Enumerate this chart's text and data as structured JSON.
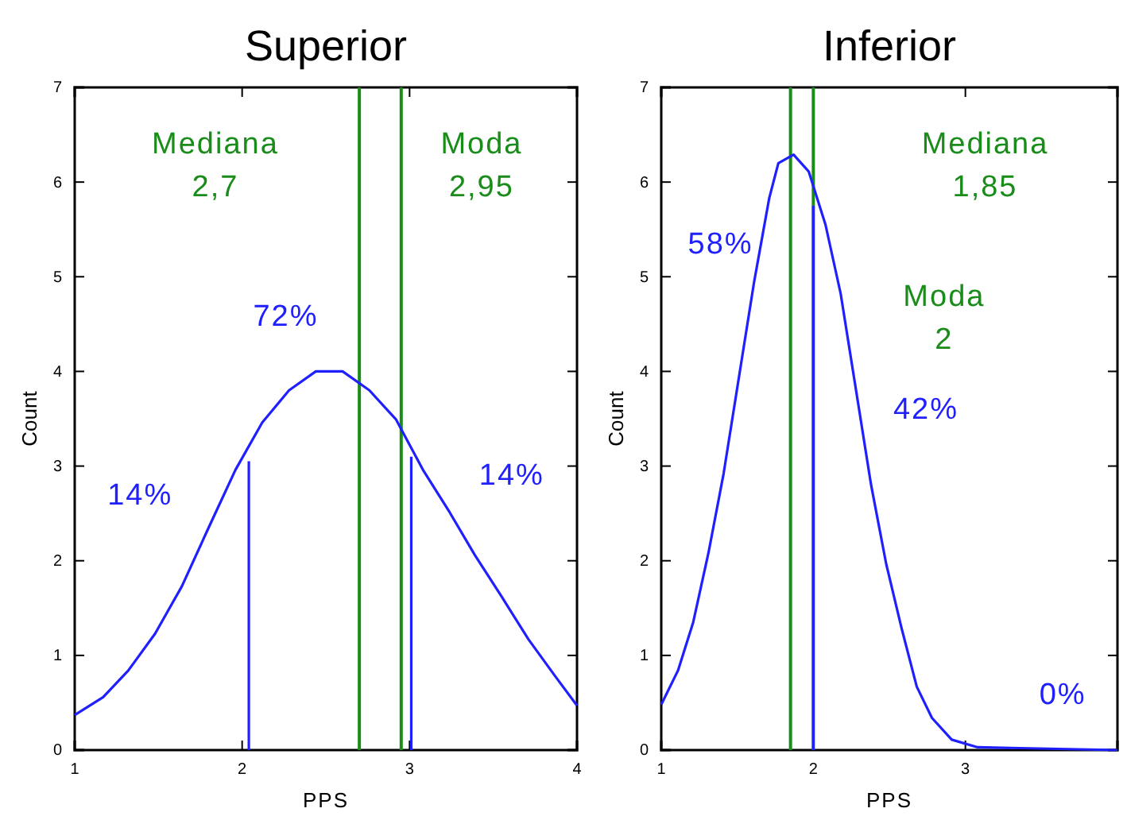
{
  "chart_data": [
    {
      "type": "line",
      "title": "Superior",
      "xlabel": "PPS",
      "ylabel": "Count",
      "xlim": [
        1,
        4
      ],
      "ylim": [
        0,
        7
      ],
      "xticks": [
        1,
        2,
        3,
        4
      ],
      "yticks": [
        0,
        1,
        2,
        3,
        4,
        5,
        6,
        7
      ],
      "marker": "none",
      "line_style": "solid",
      "series": [
        {
          "color": "#2020ff",
          "x": [
            1,
            1.17,
            1.32,
            1.48,
            1.64,
            1.8,
            1.96,
            2.12,
            2.28,
            2.44,
            2.6,
            2.76,
            2.92,
            3.08,
            3.24,
            3.39,
            3.55,
            3.71,
            3.87,
            4
          ],
          "values": [
            0.37,
            0.56,
            0.84,
            1.23,
            1.73,
            2.35,
            2.96,
            3.46,
            3.8,
            4,
            4,
            3.8,
            3.49,
            2.96,
            2.51,
            2.06,
            1.62,
            1.17,
            0.78,
            0.47
          ]
        },
        {
          "color": "#2020ff",
          "x": [
            2.04,
            2.04
          ],
          "values": [
            0,
            3.05
          ]
        },
        {
          "color": "#2020ff",
          "x": [
            3.01,
            3.01
          ],
          "values": [
            0,
            3.1
          ]
        }
      ],
      "ref_lines": [
        {
          "axis": "x",
          "value": 2.7,
          "label": "Mediana\n2,7",
          "color": "#1a8c1a"
        },
        {
          "axis": "x",
          "value": 2.95,
          "label": "Moda\n2,95",
          "color": "#1a8c1a"
        }
      ],
      "annotations": [
        "72%",
        "14%",
        "14%"
      ]
    },
    {
      "type": "line",
      "title": "Inferior",
      "xlabel": "PPS",
      "ylabel": "Count",
      "xlim": [
        1,
        4
      ],
      "ylim": [
        0,
        7
      ],
      "xticks": [
        1,
        2,
        3
      ],
      "yticks": [
        0,
        1,
        2,
        3,
        4,
        5,
        6,
        7
      ],
      "marker": "none",
      "line_style": "solid",
      "series": [
        {
          "color": "#2020ff",
          "x": [
            1,
            1.11,
            1.21,
            1.31,
            1.41,
            1.51,
            1.61,
            1.71,
            1.77,
            1.87,
            1.97,
            2.08,
            2.18,
            2.28,
            2.38,
            2.48,
            2.58,
            2.68,
            2.78,
            2.91,
            3.08,
            4
          ],
          "values": [
            0.48,
            0.84,
            1.35,
            2.08,
            2.92,
            3.93,
            4.94,
            5.83,
            6.2,
            6.29,
            6.11,
            5.55,
            4.82,
            3.81,
            2.8,
            1.96,
            1.29,
            0.67,
            0.34,
            0.11,
            0.03,
            0
          ]
        },
        {
          "color": "#2020ff",
          "x": [
            2,
            2
          ],
          "values": [
            0,
            5.75
          ]
        }
      ],
      "ref_lines": [
        {
          "axis": "x",
          "value": 1.85,
          "label": "Mediana\n1,85",
          "color": "#1a8c1a"
        },
        {
          "axis": "x",
          "value": 2,
          "label": "Moda\n2",
          "color": "#1a8c1a"
        }
      ],
      "annotations": [
        "58%",
        "42%",
        "0%"
      ]
    }
  ]
}
